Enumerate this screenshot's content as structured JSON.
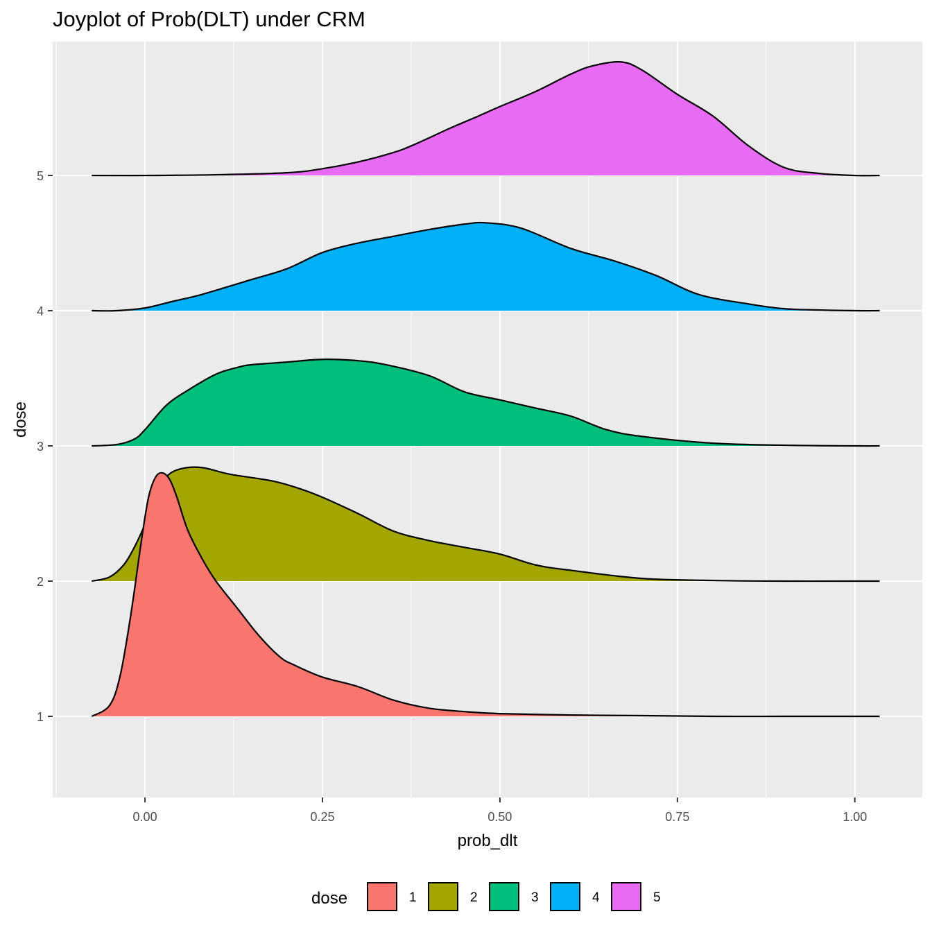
{
  "chart_data": {
    "type": "area",
    "title": "Joyplot of Prob(DLT) under CRM",
    "xlabel": "prob_dlt",
    "ylabel": "dose",
    "xlim": [
      -0.13,
      1.095
    ],
    "ylim": [
      0.4,
      5.99
    ],
    "x_ticks": [
      "0.00",
      "0.25",
      "0.50",
      "0.75",
      "1.00"
    ],
    "x_tick_values": [
      0,
      0.25,
      0.5,
      0.75,
      1.0
    ],
    "y_ticks": [
      "1",
      "2",
      "3",
      "4",
      "5"
    ],
    "y_tick_values": [
      1,
      2,
      3,
      4,
      5
    ],
    "grid": true,
    "legend": {
      "title": "dose",
      "position": "bottom"
    },
    "series": [
      {
        "name": "1",
        "baseline": 1,
        "color": "#F8766D",
        "x": [
          -0.075,
          -0.05,
          -0.035,
          -0.02,
          -0.005,
          0.005,
          0.015,
          0.025,
          0.035,
          0.045,
          0.06,
          0.08,
          0.1,
          0.13,
          0.16,
          0.19,
          0.21,
          0.25,
          0.3,
          0.35,
          0.4,
          0.45,
          0.5,
          0.6,
          0.7,
          0.8,
          0.9,
          1.0,
          1.035
        ],
        "y": [
          1.0,
          1.08,
          1.3,
          1.75,
          2.3,
          2.62,
          2.77,
          2.8,
          2.75,
          2.62,
          2.38,
          2.17,
          2.0,
          1.8,
          1.6,
          1.44,
          1.38,
          1.29,
          1.22,
          1.12,
          1.06,
          1.035,
          1.02,
          1.01,
          1.005,
          1.0,
          1.0,
          1.0,
          1.0
        ]
      },
      {
        "name": "2",
        "baseline": 2,
        "color": "#A3A500",
        "x": [
          -0.075,
          -0.05,
          -0.03,
          -0.015,
          0.0,
          0.015,
          0.03,
          0.05,
          0.08,
          0.12,
          0.18,
          0.22,
          0.25,
          0.3,
          0.35,
          0.4,
          0.45,
          0.5,
          0.55,
          0.6,
          0.7,
          0.8,
          0.9,
          1.0,
          1.035
        ],
        "y": [
          2.0,
          2.03,
          2.12,
          2.25,
          2.42,
          2.62,
          2.77,
          2.83,
          2.84,
          2.79,
          2.74,
          2.68,
          2.62,
          2.5,
          2.37,
          2.3,
          2.25,
          2.2,
          2.12,
          2.08,
          2.02,
          2.005,
          2.0,
          2.0,
          2.0
        ]
      },
      {
        "name": "3",
        "baseline": 3,
        "color": "#00BF7D",
        "x": [
          -0.075,
          -0.04,
          -0.015,
          0.0,
          0.03,
          0.06,
          0.1,
          0.13,
          0.15,
          0.2,
          0.25,
          0.3,
          0.34,
          0.4,
          0.45,
          0.5,
          0.55,
          0.6,
          0.65,
          0.7,
          0.8,
          0.9,
          1.0,
          1.035
        ],
        "y": [
          3.0,
          3.01,
          3.05,
          3.12,
          3.3,
          3.41,
          3.53,
          3.58,
          3.6,
          3.62,
          3.64,
          3.63,
          3.6,
          3.52,
          3.4,
          3.34,
          3.28,
          3.22,
          3.12,
          3.07,
          3.02,
          3.005,
          3.0,
          3.0
        ]
      },
      {
        "name": "4",
        "baseline": 4,
        "color": "#00B0F6",
        "x": [
          -0.075,
          -0.04,
          0.0,
          0.04,
          0.08,
          0.15,
          0.2,
          0.25,
          0.3,
          0.35,
          0.4,
          0.45,
          0.48,
          0.53,
          0.6,
          0.66,
          0.72,
          0.78,
          0.85,
          0.9,
          0.95,
          1.0,
          1.035
        ],
        "y": [
          4.0,
          4.0,
          4.02,
          4.07,
          4.12,
          4.23,
          4.31,
          4.43,
          4.5,
          4.55,
          4.6,
          4.64,
          4.65,
          4.61,
          4.46,
          4.37,
          4.26,
          4.12,
          4.05,
          4.015,
          4.005,
          4.0,
          4.0
        ]
      },
      {
        "name": "5",
        "baseline": 5,
        "color": "#E76BF3",
        "x": [
          -0.075,
          0.0,
          0.1,
          0.2,
          0.25,
          0.3,
          0.35,
          0.38,
          0.43,
          0.47,
          0.5,
          0.55,
          0.6,
          0.63,
          0.67,
          0.7,
          0.75,
          0.8,
          0.85,
          0.9,
          0.95,
          1.0,
          1.035
        ],
        "y": [
          5.0,
          5.0,
          5.005,
          5.02,
          5.05,
          5.1,
          5.17,
          5.23,
          5.35,
          5.44,
          5.51,
          5.62,
          5.75,
          5.81,
          5.84,
          5.78,
          5.6,
          5.44,
          5.22,
          5.06,
          5.015,
          5.0,
          5.0
        ]
      }
    ]
  }
}
